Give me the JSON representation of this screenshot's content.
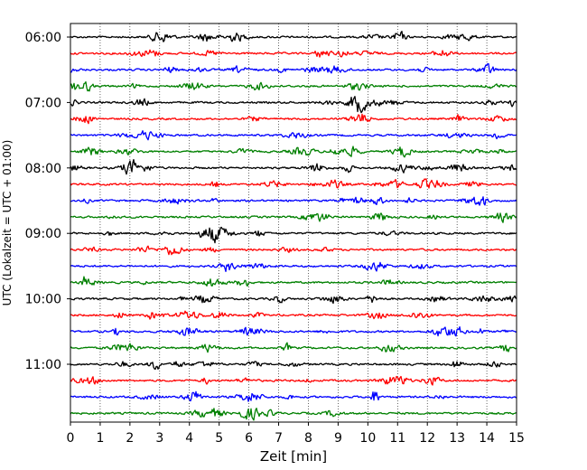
{
  "chart_data": {
    "type": "line",
    "title": "",
    "xlabel": "Zeit  [min]",
    "ylabel": "UTC (Lokalzeit = UTC + 01:00)",
    "xlim": [
      0,
      15
    ],
    "x_ticks": [
      "0",
      "1",
      "2",
      "3",
      "4",
      "5",
      "6",
      "7",
      "8",
      "9",
      "10",
      "11",
      "12",
      "13",
      "14",
      "15"
    ],
    "y_tick_labels": [
      "06:00",
      "07:00",
      "08:00",
      "09:00",
      "10:00",
      "11:00"
    ],
    "grid": "vertical dotted lines at each minute",
    "trace_interval_minutes": 15,
    "traces_start": "06:00",
    "trace_count": 24,
    "trace_color_cycle": [
      "#000000",
      "#ff0000",
      "#0000ff",
      "#008000"
    ],
    "traces": [
      "06:00",
      "06:15",
      "06:30",
      "06:45",
      "07:00",
      "07:15",
      "07:30",
      "07:45",
      "08:00",
      "08:15",
      "08:30",
      "08:45",
      "09:00",
      "09:15",
      "09:30",
      "09:45",
      "10:00",
      "10:15",
      "10:30",
      "10:45",
      "11:00",
      "11:15",
      "11:30",
      "11:45"
    ]
  }
}
